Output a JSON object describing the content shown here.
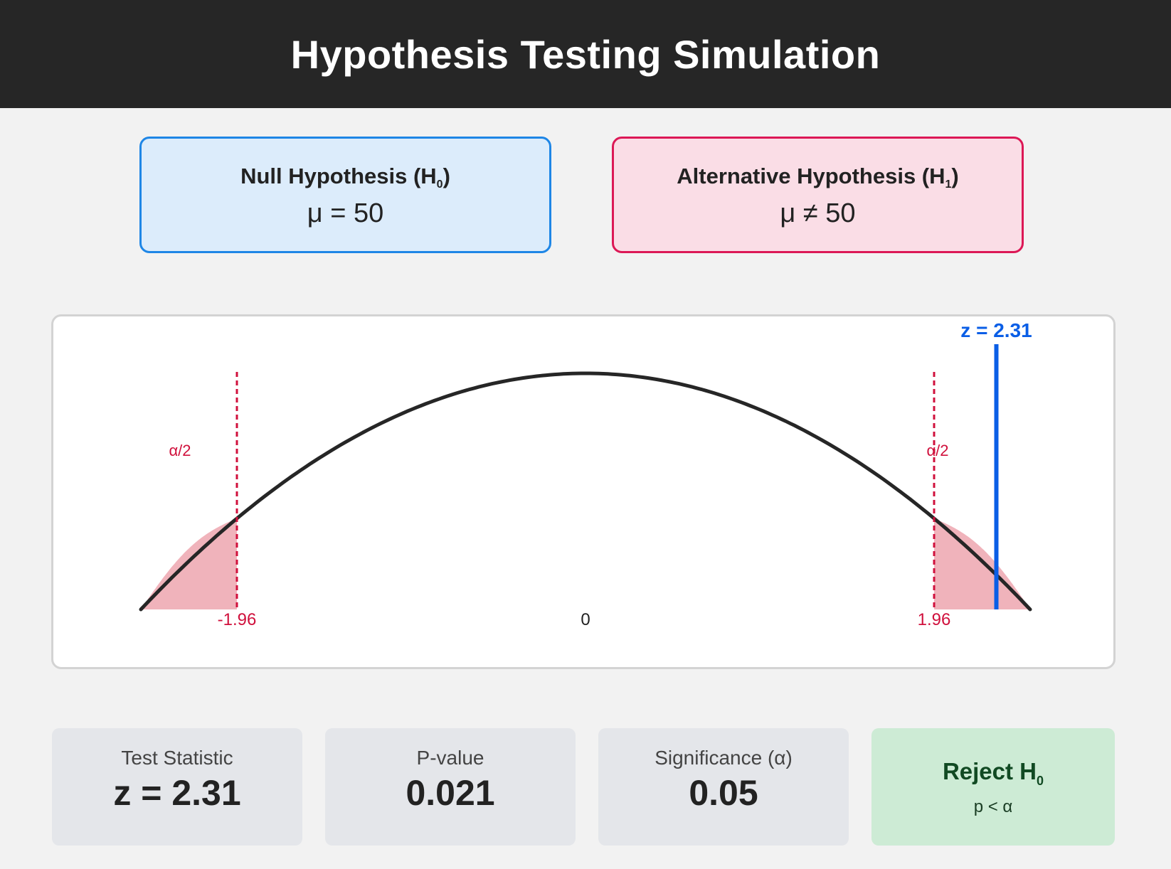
{
  "header": {
    "title": "Hypothesis Testing Simulation"
  },
  "null_hypothesis": {
    "title": "Null Hypothesis (H",
    "title_sub": "0",
    "title_end": ")",
    "expression": "μ = 50"
  },
  "alternative_hypothesis": {
    "title": "Alternative Hypothesis (H",
    "title_sub": "1",
    "title_end": ")",
    "expression": "μ ≠ 50"
  },
  "diagram": {
    "z_marker_label": "z = 2.31",
    "z_value": 2.31,
    "critical_left": -1.96,
    "critical_right": 1.96,
    "tick_left": "-1.96",
    "tick_center": "0",
    "tick_right": "1.96",
    "tail_label_left": "α/2",
    "tail_label_right": "α/2",
    "x_range": [
      -2.5,
      2.5
    ],
    "colors": {
      "curve": "#262626",
      "critical": "#d0103c",
      "tail_fill": "#f0b3bb",
      "z_line": "#0a5ee6"
    }
  },
  "stats": {
    "test_statistic": {
      "label": "Test Statistic",
      "value": "z = 2.31"
    },
    "p_value": {
      "label": "P-value",
      "value": "0.021"
    },
    "significance": {
      "label": "Significance (α)",
      "value": "0.05"
    }
  },
  "decision": {
    "main": "Reject H",
    "main_sub": "0",
    "condition": "p < α"
  }
}
